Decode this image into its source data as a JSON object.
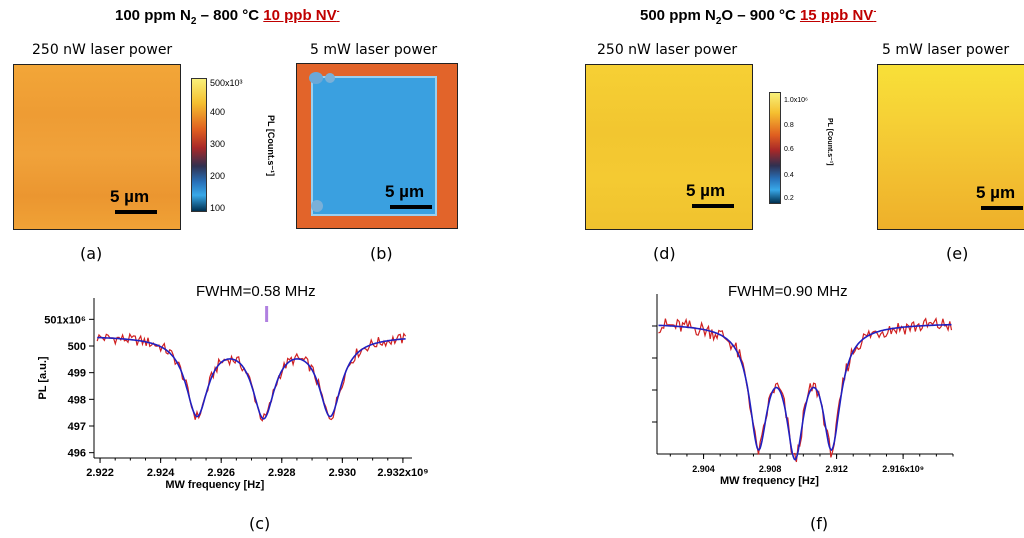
{
  "left": {
    "title_prefix": "100 ppm N",
    "title_sub": "2",
    "title_mid": " – 800 °C ",
    "title_red": "10 ppb NV",
    "title_sup": "-",
    "map_a_caption": "250 nW laser power",
    "map_b_caption": "5 mW laser power",
    "scale_label": "5 µm",
    "label_a": "(a)",
    "label_b": "(b)",
    "label_c": "(c)",
    "colorbar": {
      "ticks": [
        "500x10³",
        "400",
        "300",
        "200",
        "100"
      ],
      "unit": "PL [Count.s⁻¹]"
    }
  },
  "right": {
    "title_prefix": "500 ppm N",
    "title_sub": "2",
    "title_mid": "O – 900 °C ",
    "title_red": "15 ppb NV",
    "title_sup": "-",
    "map_d_caption": "250 nW laser power",
    "map_e_caption": "5 mW laser power",
    "scale_label": "5 µm",
    "label_d": "(d)",
    "label_e": "(e)",
    "label_f": "(f)",
    "colorbar": {
      "ticks": [
        "1.0x10⁶",
        "0.8",
        "0.6",
        "0.4",
        "0.2"
      ],
      "unit": "PL [Count.s⁻¹]"
    }
  },
  "colors": {
    "map_orange": "#f0a030",
    "map_yellow": "#f5d030",
    "map_blue": "#3aa0e0",
    "data_red": "#d02020",
    "fit_blue": "#2020c0",
    "marker_purple": "#b080e0",
    "title_red": "#c00000"
  },
  "chart_data": [
    {
      "type": "line",
      "fwhm_label": "FWHM=0.58 MHz",
      "xlabel": "MW frequency [Hz]",
      "ylabel": "PL [a.u.]",
      "xlim": [
        2921800000.0,
        2932300000.0
      ],
      "ylim": [
        495800000.0,
        501800000.0
      ],
      "xticks": [
        2922000000.0,
        2924000000.0,
        2926000000.0,
        2928000000.0,
        2930000000.0,
        2932000000.0
      ],
      "xtick_labels": [
        "2.922",
        "2.924",
        "2.926",
        "2.928",
        "2.930",
        "2.932x10⁹"
      ],
      "yticks": [
        496000000.0,
        497000000.0,
        498000000.0,
        499000000.0,
        500000000.0,
        501000000.0
      ],
      "ytick_labels": [
        "496",
        "497",
        "498",
        "499",
        "500",
        "501x10⁶"
      ],
      "baseline": 500400000.0,
      "dips": [
        {
          "center": 2925200000.0,
          "min": 497500000.0
        },
        {
          "center": 2927400000.0,
          "min": 497500000.0
        },
        {
          "center": 2929600000.0,
          "min": 497500000.0
        }
      ],
      "dip_width": 450000.0,
      "marker_x": 2927500000.0,
      "series": [
        {
          "name": "data",
          "color": "#d02020"
        },
        {
          "name": "fit",
          "color": "#2020c0"
        }
      ]
    },
    {
      "type": "line",
      "fwhm_label": "FWHM=0.90 MHz",
      "xlabel": "MW frequency [Hz]",
      "ylabel": "",
      "xlim": [
        2901200000.0,
        2919000000.0
      ],
      "ylim": [
        0,
        1
      ],
      "xticks": [
        2904000000.0,
        2908000000.0,
        2912000000.0,
        2916000000.0
      ],
      "xtick_labels": [
        "2.904",
        "2.908",
        "2.912",
        "2.916x10⁹"
      ],
      "yticks": [
        0.2,
        0.4,
        0.6,
        0.8
      ],
      "ytick_labels": [
        "",
        "",
        "",
        ""
      ],
      "baseline": 0.82,
      "dips": [
        {
          "center": 2907300000.0,
          "min": 0.1
        },
        {
          "center": 2909500000.0,
          "min": 0.08
        },
        {
          "center": 2911700000.0,
          "min": 0.1
        }
      ],
      "dip_width": 650000.0,
      "series": [
        {
          "name": "data",
          "color": "#d02020"
        },
        {
          "name": "fit",
          "color": "#2020c0"
        }
      ]
    }
  ]
}
